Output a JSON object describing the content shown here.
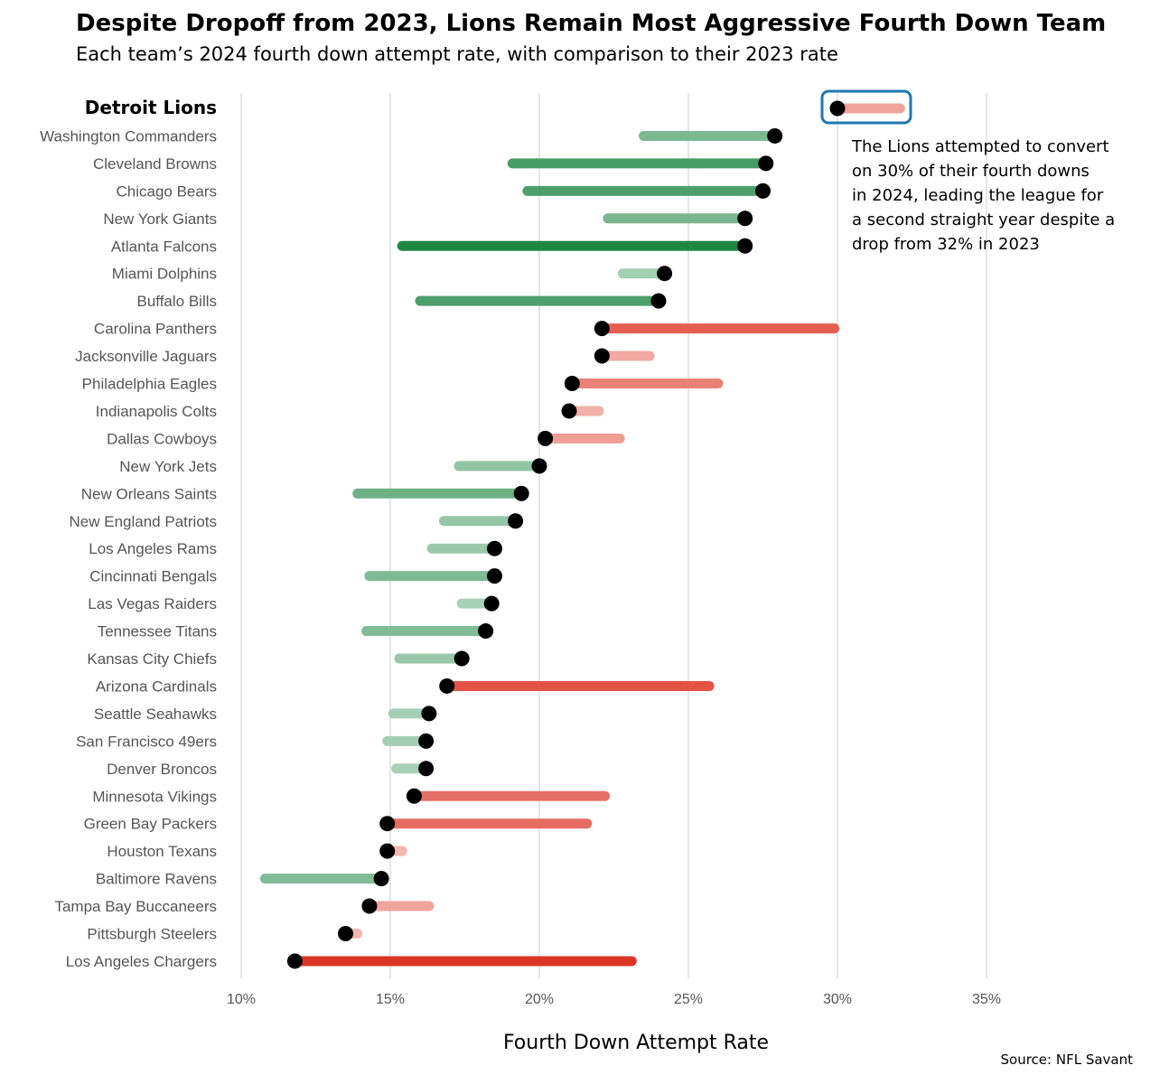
{
  "chart_data": {
    "type": "dumbbell",
    "title": "Despite Dropoff from 2023, Lions Remain Most Aggressive Fourth Down Team",
    "subtitle": "Each team’s 2024 fourth down attempt rate, with comparison to their 2023 rate",
    "xlabel": "Fourth Down Attempt Rate",
    "ylabel": "",
    "xlim": [
      10,
      36.5
    ],
    "x_ticks": [
      10,
      15,
      20,
      25,
      30,
      35
    ],
    "x_tick_labels": [
      "10%",
      "15%",
      "20%",
      "25%",
      "30%",
      "35%"
    ],
    "grid": "vertical",
    "source": "Source: NFL Savant",
    "highlight_team": "Detroit Lions",
    "annotation_lines": [
      "The Lions attempted to convert",
      "on 30% of their fourth downs",
      "in 2024, leading the league for",
      "a second straight year despite a",
      "drop from 32% in 2023"
    ],
    "colors": {
      "increase": "#1e8744",
      "decrease": "#dd3322",
      "point": "#000000",
      "highlight_box": "#1f77b4",
      "grid": "#e6e6e6"
    },
    "teams": [
      {
        "name": "Detroit Lions",
        "rate_2024": 30.0,
        "rate_2023": 32.1
      },
      {
        "name": "Washington Commanders",
        "rate_2024": 27.9,
        "rate_2023": 23.5
      },
      {
        "name": "Cleveland Browns",
        "rate_2024": 27.6,
        "rate_2023": 19.1
      },
      {
        "name": "Chicago Bears",
        "rate_2024": 27.5,
        "rate_2023": 19.6
      },
      {
        "name": "New York Giants",
        "rate_2024": 26.9,
        "rate_2023": 22.3
      },
      {
        "name": "Atlanta Falcons",
        "rate_2024": 26.9,
        "rate_2023": 15.4
      },
      {
        "name": "Miami Dolphins",
        "rate_2024": 24.2,
        "rate_2023": 22.8
      },
      {
        "name": "Buffalo Bills",
        "rate_2024": 24.0,
        "rate_2023": 16.0
      },
      {
        "name": "Carolina Panthers",
        "rate_2024": 22.1,
        "rate_2023": 29.9
      },
      {
        "name": "Jacksonville Jaguars",
        "rate_2024": 22.1,
        "rate_2023": 23.7
      },
      {
        "name": "Philadelphia Eagles",
        "rate_2024": 21.1,
        "rate_2023": 26.0
      },
      {
        "name": "Indianapolis Colts",
        "rate_2024": 21.0,
        "rate_2023": 22.0
      },
      {
        "name": "Dallas Cowboys",
        "rate_2024": 20.2,
        "rate_2023": 22.7
      },
      {
        "name": "New York Jets",
        "rate_2024": 20.0,
        "rate_2023": 17.3
      },
      {
        "name": "New Orleans Saints",
        "rate_2024": 19.4,
        "rate_2023": 13.9
      },
      {
        "name": "New England Patriots",
        "rate_2024": 19.2,
        "rate_2023": 16.8
      },
      {
        "name": "Los Angeles Rams",
        "rate_2024": 18.5,
        "rate_2023": 16.4
      },
      {
        "name": "Cincinnati Bengals",
        "rate_2024": 18.5,
        "rate_2023": 14.3
      },
      {
        "name": "Las Vegas Raiders",
        "rate_2024": 18.4,
        "rate_2023": 17.4
      },
      {
        "name": "Tennessee Titans",
        "rate_2024": 18.2,
        "rate_2023": 14.2
      },
      {
        "name": "Kansas City Chiefs",
        "rate_2024": 17.4,
        "rate_2023": 15.3
      },
      {
        "name": "Arizona Cardinals",
        "rate_2024": 16.9,
        "rate_2023": 25.7
      },
      {
        "name": "Seattle Seahawks",
        "rate_2024": 16.3,
        "rate_2023": 15.1
      },
      {
        "name": "San Francisco 49ers",
        "rate_2024": 16.2,
        "rate_2023": 14.9
      },
      {
        "name": "Denver Broncos",
        "rate_2024": 16.2,
        "rate_2023": 15.2
      },
      {
        "name": "Minnesota Vikings",
        "rate_2024": 15.8,
        "rate_2023": 22.2
      },
      {
        "name": "Green Bay Packers",
        "rate_2024": 14.9,
        "rate_2023": 21.6
      },
      {
        "name": "Houston Texans",
        "rate_2024": 14.9,
        "rate_2023": 15.4
      },
      {
        "name": "Baltimore Ravens",
        "rate_2024": 14.7,
        "rate_2023": 10.8
      },
      {
        "name": "Tampa Bay Buccaneers",
        "rate_2024": 14.3,
        "rate_2023": 16.3
      },
      {
        "name": "Pittsburgh Steelers",
        "rate_2024": 13.5,
        "rate_2023": 13.9
      },
      {
        "name": "Los Angeles Chargers",
        "rate_2024": 11.8,
        "rate_2023": 23.1
      }
    ]
  }
}
